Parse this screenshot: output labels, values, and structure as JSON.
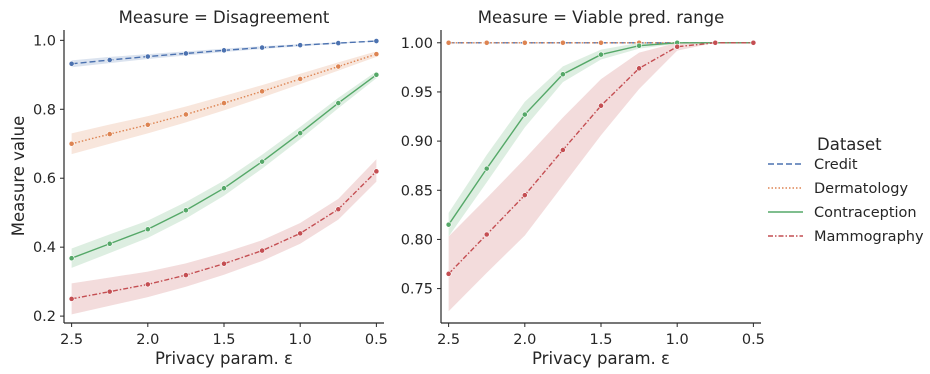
{
  "chart_data": [
    {
      "type": "line",
      "title": "Measure = Disagreement",
      "xlabel": "Privacy param. ε",
      "ylabel": "Measure value",
      "x": [
        2.5,
        2.25,
        2.0,
        1.75,
        1.5,
        1.25,
        1.0,
        0.75,
        0.5
      ],
      "x_ticks": [
        2.5,
        2.0,
        1.5,
        1.0,
        0.5
      ],
      "x_tick_labels": [
        "2.5",
        "2.0",
        "1.5",
        "1.0",
        "0.5"
      ],
      "x_reversed": true,
      "xlim": [
        2.55,
        0.45
      ],
      "ylim": [
        0.18,
        1.03
      ],
      "y_ticks": [
        0.2,
        0.4,
        0.6,
        0.8,
        1.0
      ],
      "y_tick_labels": [
        "0.2",
        "0.4",
        "0.6",
        "0.8",
        "1.0"
      ],
      "grid": false,
      "series": [
        {
          "name": "Credit",
          "color": "#4c72b0",
          "dash": "6,3",
          "values": [
            0.932,
            0.943,
            0.953,
            0.962,
            0.971,
            0.979,
            0.986,
            0.992,
            0.998
          ],
          "lower": [
            0.922,
            0.934,
            0.946,
            0.956,
            0.966,
            0.975,
            0.983,
            0.99,
            0.997
          ],
          "upper": [
            0.942,
            0.952,
            0.96,
            0.968,
            0.976,
            0.983,
            0.989,
            0.994,
            0.999
          ]
        },
        {
          "name": "Dermatology",
          "color": "#dd8452",
          "dash": "1.5,2",
          "values": [
            0.7,
            0.728,
            0.755,
            0.785,
            0.818,
            0.852,
            0.888,
            0.924,
            0.96
          ],
          "lower": [
            0.67,
            0.7,
            0.73,
            0.762,
            0.797,
            0.834,
            0.873,
            0.912,
            0.952
          ],
          "upper": [
            0.73,
            0.756,
            0.78,
            0.808,
            0.839,
            0.87,
            0.903,
            0.936,
            0.968
          ]
        },
        {
          "name": "Contraception",
          "color": "#55a868",
          "dash": "",
          "values": [
            0.368,
            0.41,
            0.452,
            0.507,
            0.571,
            0.648,
            0.731,
            0.818,
            0.9
          ],
          "lower": [
            0.34,
            0.383,
            0.427,
            0.483,
            0.549,
            0.628,
            0.713,
            0.803,
            0.89
          ],
          "upper": [
            0.396,
            0.437,
            0.477,
            0.531,
            0.593,
            0.668,
            0.749,
            0.833,
            0.91
          ]
        },
        {
          "name": "Mammography",
          "color": "#c44e52",
          "dash": "5,2,1.5,2",
          "values": [
            0.25,
            0.271,
            0.292,
            0.319,
            0.352,
            0.39,
            0.44,
            0.51,
            0.62
          ],
          "lower": [
            0.205,
            0.23,
            0.255,
            0.285,
            0.32,
            0.36,
            0.41,
            0.48,
            0.59
          ],
          "upper": [
            0.295,
            0.312,
            0.329,
            0.353,
            0.384,
            0.42,
            0.47,
            0.54,
            0.655
          ]
        }
      ]
    },
    {
      "type": "line",
      "title": "Measure = Viable pred. range",
      "xlabel": "Privacy param. ε",
      "ylabel": "",
      "x": [
        2.5,
        2.25,
        2.0,
        1.75,
        1.5,
        1.25,
        1.0,
        0.75,
        0.5
      ],
      "x_ticks": [
        2.5,
        2.0,
        1.5,
        1.0,
        0.5
      ],
      "x_tick_labels": [
        "2.5",
        "2.0",
        "1.5",
        "1.0",
        "0.5"
      ],
      "x_reversed": true,
      "xlim": [
        2.55,
        0.45
      ],
      "ylim": [
        0.715,
        1.013
      ],
      "y_ticks": [
        0.75,
        0.8,
        0.85,
        0.9,
        0.95,
        1.0
      ],
      "y_tick_labels": [
        "0.75",
        "0.80",
        "0.85",
        "0.90",
        "0.95",
        "1.00"
      ],
      "grid": false,
      "series": [
        {
          "name": "Credit",
          "color": "#4c72b0",
          "dash": "6,3",
          "values": [
            1.0,
            1.0,
            1.0,
            1.0,
            1.0,
            1.0,
            1.0,
            1.0,
            1.0
          ],
          "lower": [
            1.0,
            1.0,
            1.0,
            1.0,
            1.0,
            1.0,
            1.0,
            1.0,
            1.0
          ],
          "upper": [
            1.0,
            1.0,
            1.0,
            1.0,
            1.0,
            1.0,
            1.0,
            1.0,
            1.0
          ]
        },
        {
          "name": "Dermatology",
          "color": "#dd8452",
          "dash": "1.5,2",
          "values": [
            1.0,
            1.0,
            1.0,
            1.0,
            1.0,
            1.0,
            1.0,
            1.0,
            1.0
          ],
          "lower": [
            1.0,
            1.0,
            1.0,
            1.0,
            1.0,
            1.0,
            1.0,
            1.0,
            1.0
          ],
          "upper": [
            1.0,
            1.0,
            1.0,
            1.0,
            1.0,
            1.0,
            1.0,
            1.0,
            1.0
          ]
        },
        {
          "name": "Contraception",
          "color": "#55a868",
          "dash": "",
          "values": [
            0.815,
            0.872,
            0.927,
            0.968,
            0.988,
            0.997,
            1.0,
            1.0,
            1.0
          ],
          "lower": [
            0.803,
            0.858,
            0.914,
            0.96,
            0.983,
            0.994,
            0.999,
            1.0,
            1.0
          ],
          "upper": [
            0.827,
            0.886,
            0.94,
            0.976,
            0.993,
            1.0,
            1.0,
            1.0,
            1.0
          ]
        },
        {
          "name": "Mammography",
          "color": "#c44e52",
          "dash": "5,2,1.5,2",
          "values": [
            0.765,
            0.805,
            0.845,
            0.891,
            0.936,
            0.974,
            0.996,
            1.0,
            1.0
          ],
          "lower": [
            0.727,
            0.766,
            0.804,
            0.855,
            0.906,
            0.953,
            0.992,
            1.0,
            1.0
          ],
          "upper": [
            0.803,
            0.842,
            0.882,
            0.924,
            0.963,
            0.99,
            1.0,
            1.0,
            1.0
          ]
        }
      ]
    }
  ],
  "legend": {
    "title": "Dataset",
    "placement": "right",
    "entries": [
      {
        "label": "Credit",
        "color": "#4c72b0",
        "dash": "6,3"
      },
      {
        "label": "Dermatology",
        "color": "#dd8452",
        "dash": "1.5,2"
      },
      {
        "label": "Contraception",
        "color": "#55a868",
        "dash": ""
      },
      {
        "label": "Mammography",
        "color": "#c44e52",
        "dash": "5,2,1.5,2"
      }
    ]
  }
}
